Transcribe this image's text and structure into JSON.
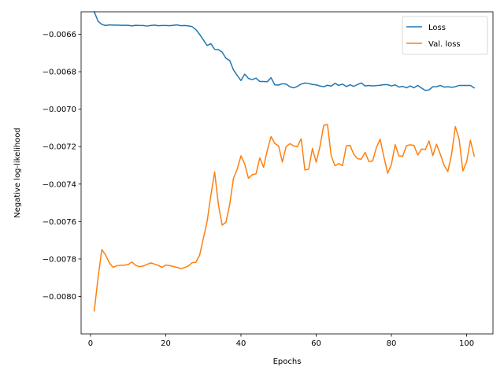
{
  "chart_data": {
    "type": "line",
    "title": "",
    "xlabel": "Epochs",
    "ylabel": "Negative log-likelihood",
    "xlim": [
      -2.5,
      107
    ],
    "ylim": [
      -0.0082,
      -0.00648
    ],
    "xticks": [
      0,
      20,
      40,
      60,
      80,
      100
    ],
    "xtick_labels": [
      "0",
      "20",
      "40",
      "60",
      "80",
      "100"
    ],
    "yticks": [
      -0.008,
      -0.0078,
      -0.0076,
      -0.0074,
      -0.0072,
      -0.007,
      -0.0068,
      -0.0066
    ],
    "ytick_labels": [
      "−0.0080",
      "−0.0078",
      "−0.0076",
      "−0.0074",
      "−0.0072",
      "−0.0070",
      "−0.0068",
      "−0.0066"
    ],
    "grid": false,
    "legend_position": "top-right",
    "x": [
      1,
      2,
      3,
      4,
      5,
      6,
      7,
      8,
      9,
      10,
      11,
      12,
      13,
      14,
      15,
      16,
      17,
      18,
      19,
      20,
      21,
      22,
      23,
      24,
      25,
      26,
      27,
      28,
      29,
      30,
      31,
      32,
      33,
      34,
      35,
      36,
      37,
      38,
      39,
      40,
      41,
      42,
      43,
      44,
      45,
      46,
      47,
      48,
      49,
      50,
      51,
      52,
      53,
      54,
      55,
      56,
      57,
      58,
      59,
      60,
      61,
      62,
      63,
      64,
      65,
      66,
      67,
      68,
      69,
      70,
      71,
      72,
      73,
      74,
      75,
      76,
      77,
      78,
      79,
      80,
      81,
      82,
      83,
      84,
      85,
      86,
      87,
      88,
      89,
      90,
      91,
      92,
      93,
      94,
      95,
      96,
      97,
      98,
      99,
      100,
      101,
      102
    ],
    "series": [
      {
        "name": "Loss",
        "color": "#1f77b4",
        "values": [
          -0.00648,
          -0.00653,
          -0.006547,
          -0.006553,
          -0.00655,
          -0.006551,
          -0.006551,
          -0.006552,
          -0.006552,
          -0.006552,
          -0.006555,
          -0.006552,
          -0.006553,
          -0.006553,
          -0.006556,
          -0.006553,
          -0.006551,
          -0.006554,
          -0.006553,
          -0.006553,
          -0.006554,
          -0.006552,
          -0.00655,
          -0.006554,
          -0.006553,
          -0.006555,
          -0.006559,
          -0.006575,
          -0.0066,
          -0.00663,
          -0.00666,
          -0.00665,
          -0.00668,
          -0.006682,
          -0.006695,
          -0.006728,
          -0.00674,
          -0.00679,
          -0.00682,
          -0.006847,
          -0.006813,
          -0.006836,
          -0.006842,
          -0.006834,
          -0.006852,
          -0.006852,
          -0.006853,
          -0.006832,
          -0.00687,
          -0.006871,
          -0.006864,
          -0.006866,
          -0.00688,
          -0.006886,
          -0.006878,
          -0.006866,
          -0.00686,
          -0.006863,
          -0.006868,
          -0.00687,
          -0.006876,
          -0.00688,
          -0.006872,
          -0.006877,
          -0.006862,
          -0.006873,
          -0.006866,
          -0.006879,
          -0.00687,
          -0.006878,
          -0.006868,
          -0.00686,
          -0.006876,
          -0.006873,
          -0.006876,
          -0.006874,
          -0.006872,
          -0.006869,
          -0.006869,
          -0.006876,
          -0.00687,
          -0.006882,
          -0.006878,
          -0.006886,
          -0.006876,
          -0.006886,
          -0.006873,
          -0.006887,
          -0.0069,
          -0.006897,
          -0.00688,
          -0.00688,
          -0.006873,
          -0.006882,
          -0.00688,
          -0.006883,
          -0.00688,
          -0.006873,
          -0.006873,
          -0.006873,
          -0.006873,
          -0.006886
        ]
      },
      {
        "name": "Val. loss",
        "color": "#ff7f0e",
        "values": [
          -0.008077,
          -0.0079,
          -0.00775,
          -0.007778,
          -0.00782,
          -0.007845,
          -0.007836,
          -0.007833,
          -0.007833,
          -0.00783,
          -0.007816,
          -0.007834,
          -0.007841,
          -0.007838,
          -0.007829,
          -0.007821,
          -0.007827,
          -0.007834,
          -0.007845,
          -0.007832,
          -0.007835,
          -0.00784,
          -0.007845,
          -0.007851,
          -0.007846,
          -0.007837,
          -0.00782,
          -0.007818,
          -0.00778,
          -0.00769,
          -0.0076,
          -0.00746,
          -0.007335,
          -0.00751,
          -0.007619,
          -0.007604,
          -0.00751,
          -0.00737,
          -0.00732,
          -0.007249,
          -0.007293,
          -0.007369,
          -0.00735,
          -0.007345,
          -0.00726,
          -0.00731,
          -0.00722,
          -0.007146,
          -0.007183,
          -0.007196,
          -0.007282,
          -0.0072,
          -0.007184,
          -0.007196,
          -0.0072,
          -0.007158,
          -0.007325,
          -0.00732,
          -0.00721,
          -0.007283,
          -0.0072,
          -0.007086,
          -0.007082,
          -0.00725,
          -0.007302,
          -0.00729,
          -0.007302,
          -0.007196,
          -0.007193,
          -0.007241,
          -0.007265,
          -0.007267,
          -0.007231,
          -0.007279,
          -0.007277,
          -0.007205,
          -0.00716,
          -0.007255,
          -0.007342,
          -0.007294,
          -0.007189,
          -0.00725,
          -0.007251,
          -0.007195,
          -0.00719,
          -0.007194,
          -0.007245,
          -0.007213,
          -0.007215,
          -0.00717,
          -0.007248,
          -0.007187,
          -0.00724,
          -0.0073,
          -0.007333,
          -0.00724,
          -0.007093,
          -0.00716,
          -0.00733,
          -0.00728,
          -0.007166,
          -0.00725
        ]
      }
    ]
  }
}
